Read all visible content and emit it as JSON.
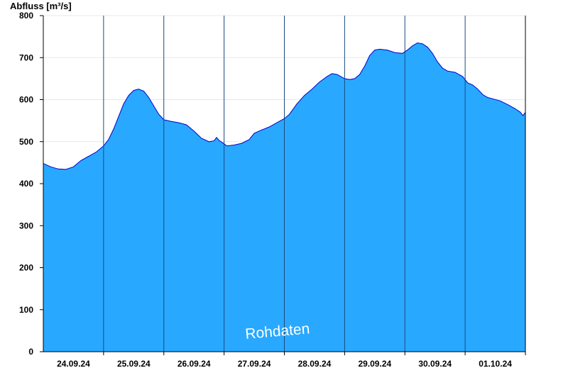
{
  "chart_data": {
    "type": "area",
    "ylabel": "Abfluss [m³/s]",
    "ylim": [
      0,
      800
    ],
    "yticks": [
      0,
      100,
      200,
      300,
      400,
      500,
      600,
      700,
      800
    ],
    "xlim": [
      "2024-09-23T12:00",
      "2024-10-01T12:00"
    ],
    "day_boundaries": [
      "2024-09-24T12:00",
      "2024-09-25T12:00",
      "2024-09-26T12:00",
      "2024-09-27T12:00",
      "2024-09-28T12:00",
      "2024-09-29T12:00",
      "2024-09-30T12:00",
      "2024-10-01T12:00"
    ],
    "day_labels": [
      {
        "label": "24.09.24",
        "t": "2024-09-24T00:00"
      },
      {
        "label": "25.09.24",
        "t": "2024-09-25T00:00"
      },
      {
        "label": "26.09.24",
        "t": "2024-09-26T00:00"
      },
      {
        "label": "27.09.24",
        "t": "2024-09-27T00:00"
      },
      {
        "label": "28.09.24",
        "t": "2024-09-28T00:00"
      },
      {
        "label": "29.09.24",
        "t": "2024-09-29T00:00"
      },
      {
        "label": "30.09.24",
        "t": "2024-09-30T00:00"
      },
      {
        "label": "01.10.24",
        "t": "2024-10-01T00:00"
      }
    ],
    "grid": true,
    "series": [
      {
        "points": [
          [
            "2024-09-23T12:00",
            448
          ],
          [
            "2024-09-23T15:00",
            440
          ],
          [
            "2024-09-23T18:00",
            435
          ],
          [
            "2024-09-23T21:00",
            434
          ],
          [
            "2024-09-24T00:00",
            440
          ],
          [
            "2024-09-24T03:00",
            455
          ],
          [
            "2024-09-24T06:00",
            465
          ],
          [
            "2024-09-24T09:00",
            475
          ],
          [
            "2024-09-24T12:00",
            490
          ],
          [
            "2024-09-24T14:00",
            505
          ],
          [
            "2024-09-24T16:00",
            530
          ],
          [
            "2024-09-24T18:00",
            560
          ],
          [
            "2024-09-24T20:00",
            590
          ],
          [
            "2024-09-24T22:00",
            610
          ],
          [
            "2024-09-25T00:00",
            622
          ],
          [
            "2024-09-25T02:00",
            625
          ],
          [
            "2024-09-25T04:00",
            620
          ],
          [
            "2024-09-25T06:00",
            605
          ],
          [
            "2024-09-25T08:00",
            585
          ],
          [
            "2024-09-25T10:00",
            565
          ],
          [
            "2024-09-25T12:00",
            552
          ],
          [
            "2024-09-25T15:00",
            548
          ],
          [
            "2024-09-25T18:00",
            545
          ],
          [
            "2024-09-25T21:00",
            540
          ],
          [
            "2024-09-26T00:00",
            525
          ],
          [
            "2024-09-26T03:00",
            508
          ],
          [
            "2024-09-26T06:00",
            500
          ],
          [
            "2024-09-26T08:00",
            502
          ],
          [
            "2024-09-26T09:00",
            510
          ],
          [
            "2024-09-26T10:00",
            503
          ],
          [
            "2024-09-26T12:00",
            495
          ],
          [
            "2024-09-26T13:00",
            490
          ],
          [
            "2024-09-26T16:00",
            492
          ],
          [
            "2024-09-26T19:00",
            496
          ],
          [
            "2024-09-26T22:00",
            505
          ],
          [
            "2024-09-27T00:00",
            520
          ],
          [
            "2024-09-27T03:00",
            528
          ],
          [
            "2024-09-27T06:00",
            535
          ],
          [
            "2024-09-27T09:00",
            545
          ],
          [
            "2024-09-27T12:00",
            555
          ],
          [
            "2024-09-27T14:00",
            565
          ],
          [
            "2024-09-27T17:00",
            590
          ],
          [
            "2024-09-27T20:00",
            610
          ],
          [
            "2024-09-27T23:00",
            625
          ],
          [
            "2024-09-28T02:00",
            642
          ],
          [
            "2024-09-28T05:00",
            655
          ],
          [
            "2024-09-28T07:00",
            662
          ],
          [
            "2024-09-28T09:00",
            660
          ],
          [
            "2024-09-28T12:00",
            650
          ],
          [
            "2024-09-28T14:00",
            648
          ],
          [
            "2024-09-28T16:00",
            650
          ],
          [
            "2024-09-28T18:00",
            660
          ],
          [
            "2024-09-28T20:00",
            680
          ],
          [
            "2024-09-28T22:00",
            705
          ],
          [
            "2024-09-29T00:00",
            718
          ],
          [
            "2024-09-29T02:00",
            720
          ],
          [
            "2024-09-29T05:00",
            718
          ],
          [
            "2024-09-29T08:00",
            712
          ],
          [
            "2024-09-29T11:00",
            710
          ],
          [
            "2024-09-29T13:00",
            718
          ],
          [
            "2024-09-29T15:00",
            728
          ],
          [
            "2024-09-29T17:00",
            735
          ],
          [
            "2024-09-29T19:00",
            733
          ],
          [
            "2024-09-29T21:00",
            725
          ],
          [
            "2024-09-29T23:00",
            710
          ],
          [
            "2024-09-30T01:00",
            690
          ],
          [
            "2024-09-30T03:00",
            675
          ],
          [
            "2024-09-30T05:00",
            668
          ],
          [
            "2024-09-30T08:00",
            665
          ],
          [
            "2024-09-30T11:00",
            655
          ],
          [
            "2024-09-30T13:00",
            640
          ],
          [
            "2024-09-30T15:00",
            635
          ],
          [
            "2024-09-30T17:00",
            625
          ],
          [
            "2024-09-30T19:00",
            612
          ],
          [
            "2024-09-30T21:00",
            605
          ],
          [
            "2024-09-30T23:00",
            602
          ],
          [
            "2024-10-01T02:00",
            597
          ],
          [
            "2024-10-01T05:00",
            588
          ],
          [
            "2024-10-01T08:00",
            578
          ],
          [
            "2024-10-01T10:00",
            570
          ],
          [
            "2024-10-01T11:00",
            562
          ],
          [
            "2024-10-01T12:00",
            570
          ]
        ]
      }
    ],
    "annotations": [
      "Rohdaten"
    ],
    "colors": {
      "fill": "#29a8ff",
      "line": "#0000cc",
      "day_separator": "#1a4a80",
      "grid": "#e8e8e8",
      "axis": "#000000",
      "watermark": "#ffffff"
    }
  }
}
